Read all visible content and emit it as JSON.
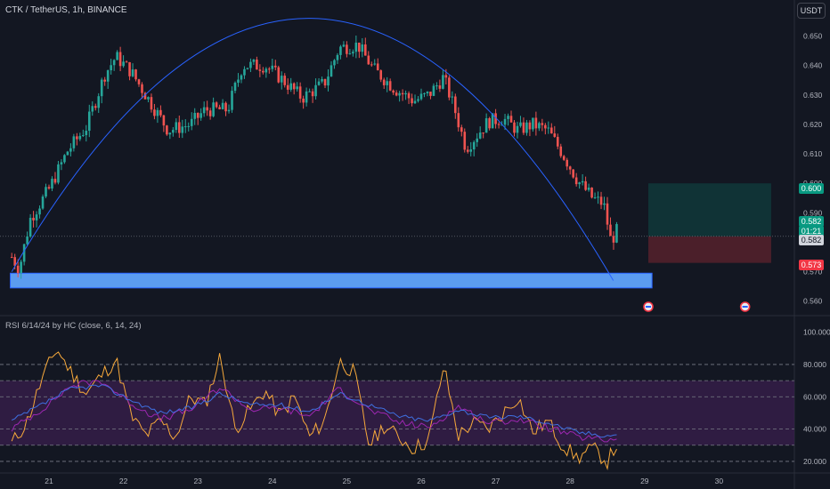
{
  "header": {
    "title": "CTK / TetherUS, 1h, BINANCE",
    "currency_button": "USDT"
  },
  "rsi_panel": {
    "title": "RSI 6/14/24 by HC (close, 6, 14, 24)"
  },
  "price_labels": {
    "target": "0.600",
    "current": "0.582",
    "countdown": "01:21",
    "current_line": "0.582",
    "stop": "0.573"
  },
  "colors": {
    "background": "#131722",
    "up": "#26a69a",
    "down": "#ef5350",
    "arc": "#2962ff",
    "support_zone": "#5b9cf0",
    "rsi_fast": "#f7a93b",
    "rsi_mid": "#9c27b0",
    "rsi_slow": "#3f6fe0",
    "rsi_band": "#3a1f4d"
  },
  "chart_data": [
    {
      "type": "candlestick",
      "title": "CTK / TetherUS, 1h, BINANCE",
      "x_labels": [
        "21",
        "22",
        "23",
        "24",
        "25",
        "26",
        "27",
        "28",
        "29",
        "30"
      ],
      "y_ticks": [
        "0.560",
        "0.570",
        "0.580",
        "0.590",
        "0.600",
        "0.610",
        "0.620",
        "0.630",
        "0.640",
        "0.650"
      ],
      "ylim": [
        0.556,
        0.658
      ],
      "anchors_close": [
        [
          20.5,
          0.575
        ],
        [
          20.6,
          0.571
        ],
        [
          20.75,
          0.588
        ],
        [
          21.0,
          0.598
        ],
        [
          21.25,
          0.611
        ],
        [
          21.5,
          0.619
        ],
        [
          21.75,
          0.637
        ],
        [
          21.9,
          0.643
        ],
        [
          22.1,
          0.638
        ],
        [
          22.3,
          0.63
        ],
        [
          22.6,
          0.618
        ],
        [
          22.9,
          0.62
        ],
        [
          23.1,
          0.625
        ],
        [
          23.4,
          0.625
        ],
        [
          23.6,
          0.64
        ],
        [
          23.9,
          0.64
        ],
        [
          24.1,
          0.636
        ],
        [
          24.4,
          0.629
        ],
        [
          24.7,
          0.634
        ],
        [
          24.9,
          0.646
        ],
        [
          25.15,
          0.647
        ],
        [
          25.35,
          0.639
        ],
        [
          25.65,
          0.632
        ],
        [
          25.9,
          0.628
        ],
        [
          26.1,
          0.63
        ],
        [
          26.3,
          0.636
        ],
        [
          26.45,
          0.625
        ],
        [
          26.6,
          0.612
        ],
        [
          26.9,
          0.621
        ],
        [
          27.1,
          0.622
        ],
        [
          27.3,
          0.618
        ],
        [
          27.5,
          0.62
        ],
        [
          27.7,
          0.618
        ],
        [
          27.9,
          0.61
        ],
        [
          28.1,
          0.601
        ],
        [
          28.3,
          0.595
        ],
        [
          28.45,
          0.593
        ],
        [
          28.55,
          0.58
        ],
        [
          28.62,
          0.584
        ],
        [
          28.66,
          0.582
        ]
      ],
      "arc": {
        "start": [
          20.5,
          0.57
        ],
        "peak": [
          24.5,
          0.656
        ],
        "end": [
          28.58,
          0.567
        ]
      },
      "support_zone": {
        "from": 0.5695,
        "to": 0.5645,
        "x_start": 20.48,
        "x_end": 29.1
      },
      "position": {
        "entry": 0.582,
        "target": 0.6,
        "stop": 0.573,
        "x_start": 29.05,
        "x_end": 30.7
      },
      "current_price": 0.582,
      "event_markers_x": [
        29.05,
        30.35
      ]
    },
    {
      "type": "line",
      "title": "RSI 6/14/24 by HC (close, 6, 14, 24)",
      "y_ticks": [
        "20.000",
        "40.000",
        "60.000",
        "80.000",
        "100.000"
      ],
      "ylim": [
        15,
        102
      ],
      "levels": [
        20,
        30,
        40,
        60,
        70,
        80
      ],
      "band": [
        30,
        70
      ],
      "series": [
        {
          "name": "RSI 6",
          "x": [
            20.5,
            20.7,
            20.9,
            21.1,
            21.3,
            21.5,
            21.7,
            21.9,
            22.1,
            22.3,
            22.5,
            22.7,
            22.9,
            23.1,
            23.3,
            23.5,
            23.7,
            23.9,
            24.1,
            24.3,
            24.5,
            24.7,
            24.9,
            25.1,
            25.3,
            25.5,
            25.7,
            25.9,
            26.1,
            26.3,
            26.5,
            26.7,
            26.9,
            27.1,
            27.3,
            27.5,
            27.7,
            27.9,
            28.1,
            28.3,
            28.5,
            28.66
          ],
          "values": [
            31,
            44,
            70,
            90,
            75,
            62,
            73,
            83,
            48,
            36,
            45,
            35,
            60,
            55,
            85,
            40,
            52,
            64,
            48,
            60,
            35,
            45,
            82,
            75,
            30,
            42,
            35,
            28,
            33,
            79,
            36,
            44,
            40,
            50,
            60,
            38,
            45,
            30,
            22,
            28,
            20,
            33
          ]
        },
        {
          "name": "RSI 14",
          "x": [
            20.5,
            20.9,
            21.3,
            21.7,
            22.1,
            22.5,
            22.9,
            23.3,
            23.7,
            24.1,
            24.5,
            24.9,
            25.3,
            25.7,
            26.1,
            26.5,
            26.9,
            27.3,
            27.7,
            28.1,
            28.5,
            28.66
          ],
          "values": [
            40,
            52,
            67,
            70,
            56,
            46,
            52,
            66,
            52,
            53,
            48,
            65,
            52,
            44,
            41,
            54,
            44,
            46,
            41,
            35,
            33,
            35
          ]
        },
        {
          "name": "RSI 24",
          "x": [
            20.5,
            20.9,
            21.3,
            21.7,
            22.1,
            22.5,
            22.9,
            23.3,
            23.7,
            24.1,
            24.5,
            24.9,
            25.3,
            25.7,
            26.1,
            26.5,
            26.9,
            27.3,
            27.7,
            28.1,
            28.5,
            28.66
          ],
          "values": [
            45,
            55,
            65,
            67,
            58,
            50,
            53,
            62,
            55,
            55,
            51,
            62,
            55,
            48,
            45,
            52,
            47,
            48,
            44,
            38,
            36,
            37
          ]
        }
      ]
    }
  ]
}
